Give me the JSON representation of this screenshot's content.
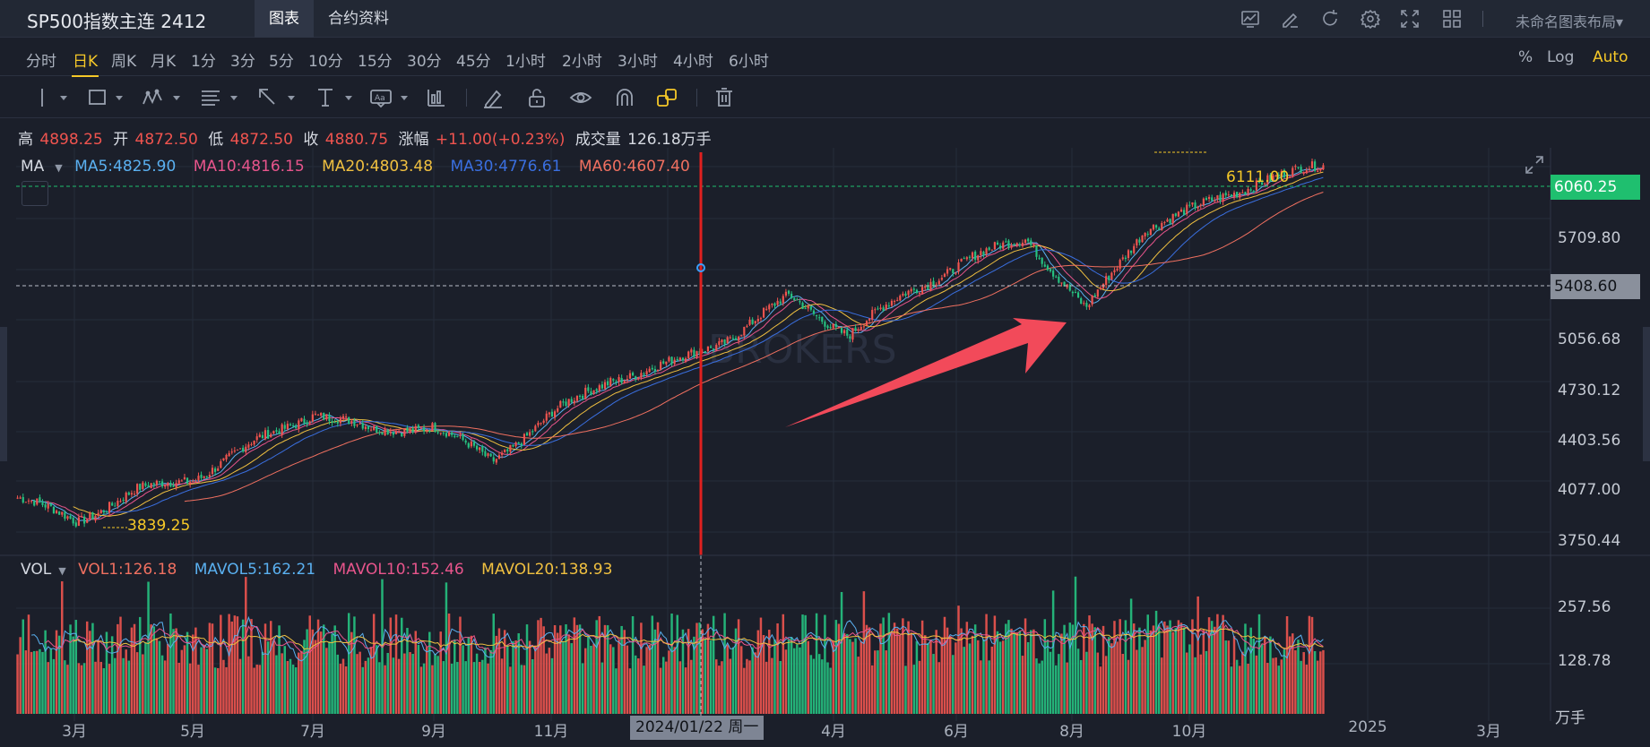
{
  "app_title": "SP500指数主连 2412",
  "tabs": [
    {
      "label": "图表"
    },
    {
      "label": "合约资料"
    }
  ],
  "layout_name": "未命名图表布局",
  "top_icons": [
    "indicator-icon",
    "draw-icon",
    "refresh-icon",
    "settings-icon",
    "fullscreen-icon",
    "grid-layout-icon"
  ],
  "periods": [
    "分时",
    "日K",
    "周K",
    "月K",
    "1分",
    "3分",
    "5分",
    "10分",
    "15分",
    "30分",
    "45分",
    "1小时",
    "2小时",
    "3小时",
    "4小时",
    "6小时"
  ],
  "active_period": "日K",
  "scale_options": [
    "%",
    "Log",
    "Auto"
  ],
  "active_scale": "Auto",
  "draw_tools": [
    "line-tool-icon",
    "rectangle-tool-icon",
    "pattern-tool-icon",
    "fib-tool-icon",
    "arrow-tool-icon",
    "measure-tool-icon",
    "text-tool-icon",
    "bar-pattern-icon",
    "pencil-icon",
    "unlock-icon",
    "eye-icon",
    "magnet-icon",
    "link-layers-icon",
    "trash-icon"
  ],
  "ohlc": {
    "high_label": "高",
    "high": "4898.25",
    "open_label": "开",
    "open": "4872.50",
    "low_label": "低",
    "low": "4872.50",
    "close_label": "收",
    "close": "4880.75",
    "change_label": "涨幅",
    "change": "+11.00(+0.23%)",
    "volume_label": "成交量",
    "volume": "126.18万手"
  },
  "ma_legend": {
    "name": "MA",
    "items": [
      {
        "text": "MA5:4825.90",
        "color": "#5ab0f0"
      },
      {
        "text": "MA10:4816.15",
        "color": "#e8558c"
      },
      {
        "text": "MA20:4803.48",
        "color": "#f0c040"
      },
      {
        "text": "MA30:4776.61",
        "color": "#3a6fe0"
      },
      {
        "text": "MA60:4607.40",
        "color": "#f07060"
      }
    ]
  },
  "vol_legend": {
    "name": "VOL",
    "items": [
      {
        "text": "VOL1:126.18",
        "color": "#f07060"
      },
      {
        "text": "MAVOL5:162.21",
        "color": "#5ab0f0"
      },
      {
        "text": "MAVOL10:152.46",
        "color": "#e8558c"
      },
      {
        "text": "MAVOL20:138.93",
        "color": "#f0c040"
      }
    ]
  },
  "price_axis": [
    "5709.80",
    "5056.68",
    "4730.12",
    "4403.56",
    "4077.00",
    "3750.44"
  ],
  "last_price": "6060.25",
  "cursor_price": "5408.60",
  "high_marker": "6111.00",
  "low_marker": "3839.25",
  "volume_axis": [
    "257.56",
    "128.78"
  ],
  "volume_unit": "万手",
  "time_axis": [
    "3月",
    "5月",
    "7月",
    "9月",
    "11月",
    "4月",
    "6月",
    "8月",
    "10月",
    "2025",
    "3月"
  ],
  "cursor_date": "2024/01/22 周一",
  "colors": {
    "up": "#f0544f",
    "down": "#26c281",
    "accent": "#f5c828",
    "crosshair": "#e0201f",
    "arrow": "#f24a5a"
  },
  "chart_data": {
    "type": "candlestick",
    "y_range": [
      3750.44,
      6111.0
    ],
    "series": [
      {
        "name": "MA5",
        "value": 4825.9
      },
      {
        "name": "MA10",
        "value": 4816.15
      },
      {
        "name": "MA20",
        "value": 4803.48
      },
      {
        "name": "MA30",
        "value": 4776.61
      },
      {
        "name": "MA60",
        "value": 4607.4
      }
    ],
    "close_path": [
      [
        "2023-02",
        4080
      ],
      [
        "2023-03",
        3940
      ],
      [
        "2023-04",
        4120
      ],
      [
        "2023-05",
        4200
      ],
      [
        "2023-06",
        4410
      ],
      [
        "2023-07",
        4590
      ],
      [
        "2023-08",
        4480
      ],
      [
        "2023-09",
        4510
      ],
      [
        "2023-10",
        4300
      ],
      [
        "2023-11",
        4580
      ],
      [
        "2023-12",
        4790
      ],
      [
        "2024-01",
        4880
      ],
      [
        "2024-02",
        5040
      ],
      [
        "2024-03",
        5280
      ],
      [
        "2024-04",
        5060
      ],
      [
        "2024-05",
        5310
      ],
      [
        "2024-06",
        5500
      ],
      [
        "2024-07",
        5640
      ],
      [
        "2024-08",
        5200
      ],
      [
        "2024-09",
        5700
      ],
      [
        "2024-10",
        5830
      ],
      [
        "2024-11",
        5990
      ],
      [
        "2024-12",
        6060
      ]
    ],
    "volume_range": [
      0,
      257.56
    ],
    "volume_latest": 126.18
  }
}
